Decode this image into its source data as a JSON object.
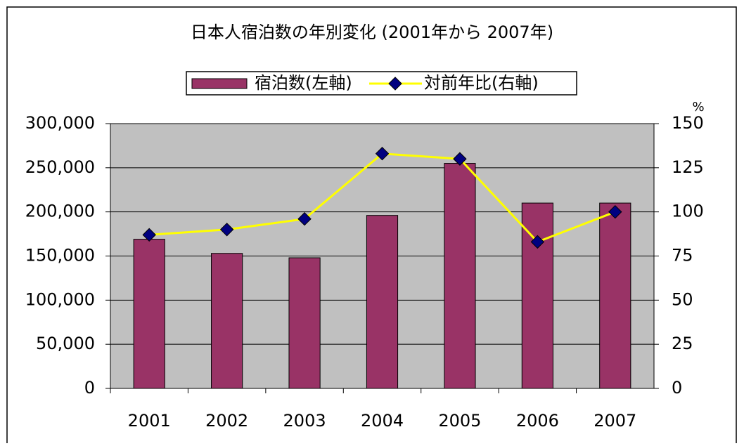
{
  "chart_data": {
    "type": "bar",
    "title": "日本人宿泊数の年別変化 (2001年から 2007年)",
    "categories": [
      "2001",
      "2002",
      "2003",
      "2004",
      "2005",
      "2006",
      "2007"
    ],
    "series": [
      {
        "name": "宿泊数(左軸)",
        "type": "bar",
        "color": "#993366",
        "values": [
          169000,
          153000,
          148000,
          196000,
          255000,
          210000,
          210000
        ]
      },
      {
        "name": "対前年比(右軸)",
        "type": "line",
        "axis": "y2",
        "color": "#ffff00",
        "marker_color": "#000080",
        "values": [
          87,
          90,
          96,
          133,
          130,
          83,
          100
        ]
      }
    ],
    "ylim": [
      0,
      300000
    ],
    "yticks": [
      0,
      {
        "value": 50000,
        "label": "50,000"
      },
      {
        "value": 100000,
        "label": "100,000"
      },
      {
        "value": 150000,
        "label": "150,000"
      },
      {
        "value": 200000,
        "label": "200,000"
      },
      {
        "value": 250000,
        "label": "250,000"
      },
      {
        "value": 300000,
        "label": "300,000"
      }
    ],
    "y2lim": [
      0,
      150
    ],
    "y2ticks": [
      0,
      25,
      50,
      75,
      100,
      125,
      150
    ],
    "y2_label": "%",
    "grid": true,
    "plot_background": "#c0c0c0"
  }
}
